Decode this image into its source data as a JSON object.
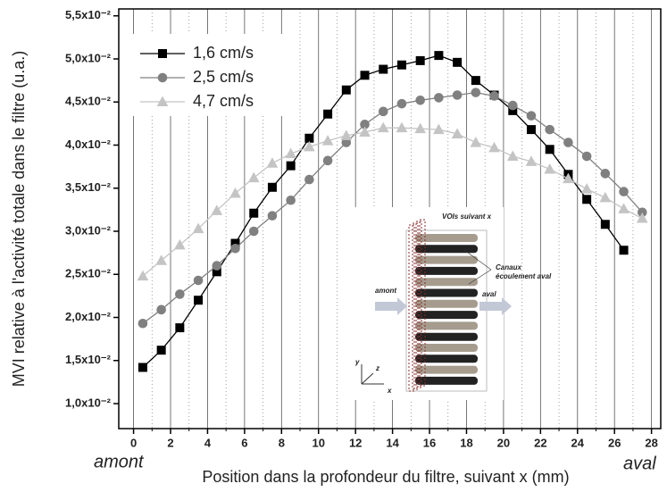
{
  "chart_data": {
    "type": "line",
    "y_label": "MVI relative à l'activité totale dans le filtre (u.a.)",
    "x_label": "Position dans la profondeur du filtre, suivant x (mm)",
    "annotations": [
      "amont",
      "aval"
    ],
    "inset_labels": {
      "vois": "VOIs suivant x",
      "canaux": "Canaux",
      "ecoulement": "écoulement aval",
      "amont": "amont",
      "aval": "aval",
      "x": "x",
      "y": "y",
      "z": "z"
    },
    "xlim": [
      -0.8,
      28.5
    ],
    "xticks": [
      0,
      2,
      4,
      6,
      8,
      10,
      12,
      14,
      16,
      18,
      20,
      22,
      24,
      26,
      28
    ],
    "xminorticks": [
      1,
      3,
      5,
      7,
      9,
      11,
      13,
      15,
      17,
      19,
      21,
      23,
      25,
      27
    ],
    "ylim": [
      0.0071,
      0.0558
    ],
    "yticks": [
      {
        "value": 0.01,
        "label": "1,0x10⁻²"
      },
      {
        "value": 0.015,
        "label": "1,5x10⁻²"
      },
      {
        "value": 0.02,
        "label": "2,0x10⁻²"
      },
      {
        "value": 0.025,
        "label": "2,5x10⁻²"
      },
      {
        "value": 0.03,
        "label": "3,0x10⁻²"
      },
      {
        "value": 0.035,
        "label": "3,5x10⁻²"
      },
      {
        "value": 0.04,
        "label": "4,0x10⁻²"
      },
      {
        "value": 0.045,
        "label": "4,5x10⁻²"
      },
      {
        "value": 0.05,
        "label": "5,0x10⁻²"
      },
      {
        "value": 0.055,
        "label": "5,5x10⁻²"
      }
    ],
    "grid": true,
    "legend": "upper left",
    "series": [
      {
        "name": "1,6 cm/s",
        "color": "#000000",
        "marker": "square",
        "x": [
          0.5,
          1.5,
          2.5,
          3.5,
          4.5,
          5.5,
          6.5,
          7.5,
          8.5,
          9.5,
          10.5,
          11.5,
          12.5,
          13.5,
          14.5,
          15.5,
          16.5,
          17.5,
          18.5,
          19.5,
          20.5,
          21.5,
          22.5,
          23.5,
          24.5,
          25.5,
          26.5
        ],
        "values": [
          0.0142,
          0.0162,
          0.0188,
          0.022,
          0.0253,
          0.0286,
          0.0321,
          0.0351,
          0.0376,
          0.0408,
          0.0436,
          0.0464,
          0.0481,
          0.0488,
          0.0493,
          0.0498,
          0.0504,
          0.0496,
          0.0475,
          0.0458,
          0.044,
          0.0418,
          0.0395,
          0.0366,
          0.0337,
          0.0308,
          0.0278
        ]
      },
      {
        "name": "2,5 cm/s",
        "color": "#808080",
        "marker": "circle",
        "x": [
          0.5,
          1.5,
          2.5,
          3.5,
          4.5,
          5.5,
          6.5,
          7.5,
          8.5,
          9.5,
          10.5,
          11.5,
          12.5,
          13.5,
          14.5,
          15.5,
          16.5,
          17.5,
          18.5,
          19.5,
          20.5,
          21.5,
          22.5,
          23.5,
          24.5,
          25.5,
          26.5,
          27.5
        ],
        "values": [
          0.0193,
          0.0209,
          0.0227,
          0.0243,
          0.026,
          0.028,
          0.03,
          0.0318,
          0.0336,
          0.036,
          0.0382,
          0.0403,
          0.0424,
          0.0439,
          0.0448,
          0.0452,
          0.0455,
          0.0458,
          0.0461,
          0.0457,
          0.0446,
          0.0434,
          0.0418,
          0.0403,
          0.0387,
          0.0367,
          0.0346,
          0.0322
        ]
      },
      {
        "name": "4,7 cm/s",
        "color": "#c4c4c4",
        "marker": "triangle",
        "x": [
          0.5,
          1.5,
          2.5,
          3.5,
          4.5,
          5.5,
          6.5,
          7.5,
          8.5,
          9.5,
          10.5,
          11.5,
          12.5,
          13.5,
          14.5,
          15.5,
          16.5,
          17.5,
          18.5,
          19.5,
          20.5,
          21.5,
          22.5,
          23.5,
          24.5,
          25.5,
          26.5,
          27.5
        ],
        "values": [
          0.0248,
          0.0266,
          0.0284,
          0.0303,
          0.0324,
          0.0344,
          0.0362,
          0.0379,
          0.039,
          0.0398,
          0.0405,
          0.0411,
          0.0415,
          0.042,
          0.042,
          0.0419,
          0.0418,
          0.0413,
          0.0403,
          0.0397,
          0.0387,
          0.0381,
          0.0372,
          0.0361,
          0.0349,
          0.0339,
          0.0326,
          0.0315
        ]
      }
    ]
  }
}
